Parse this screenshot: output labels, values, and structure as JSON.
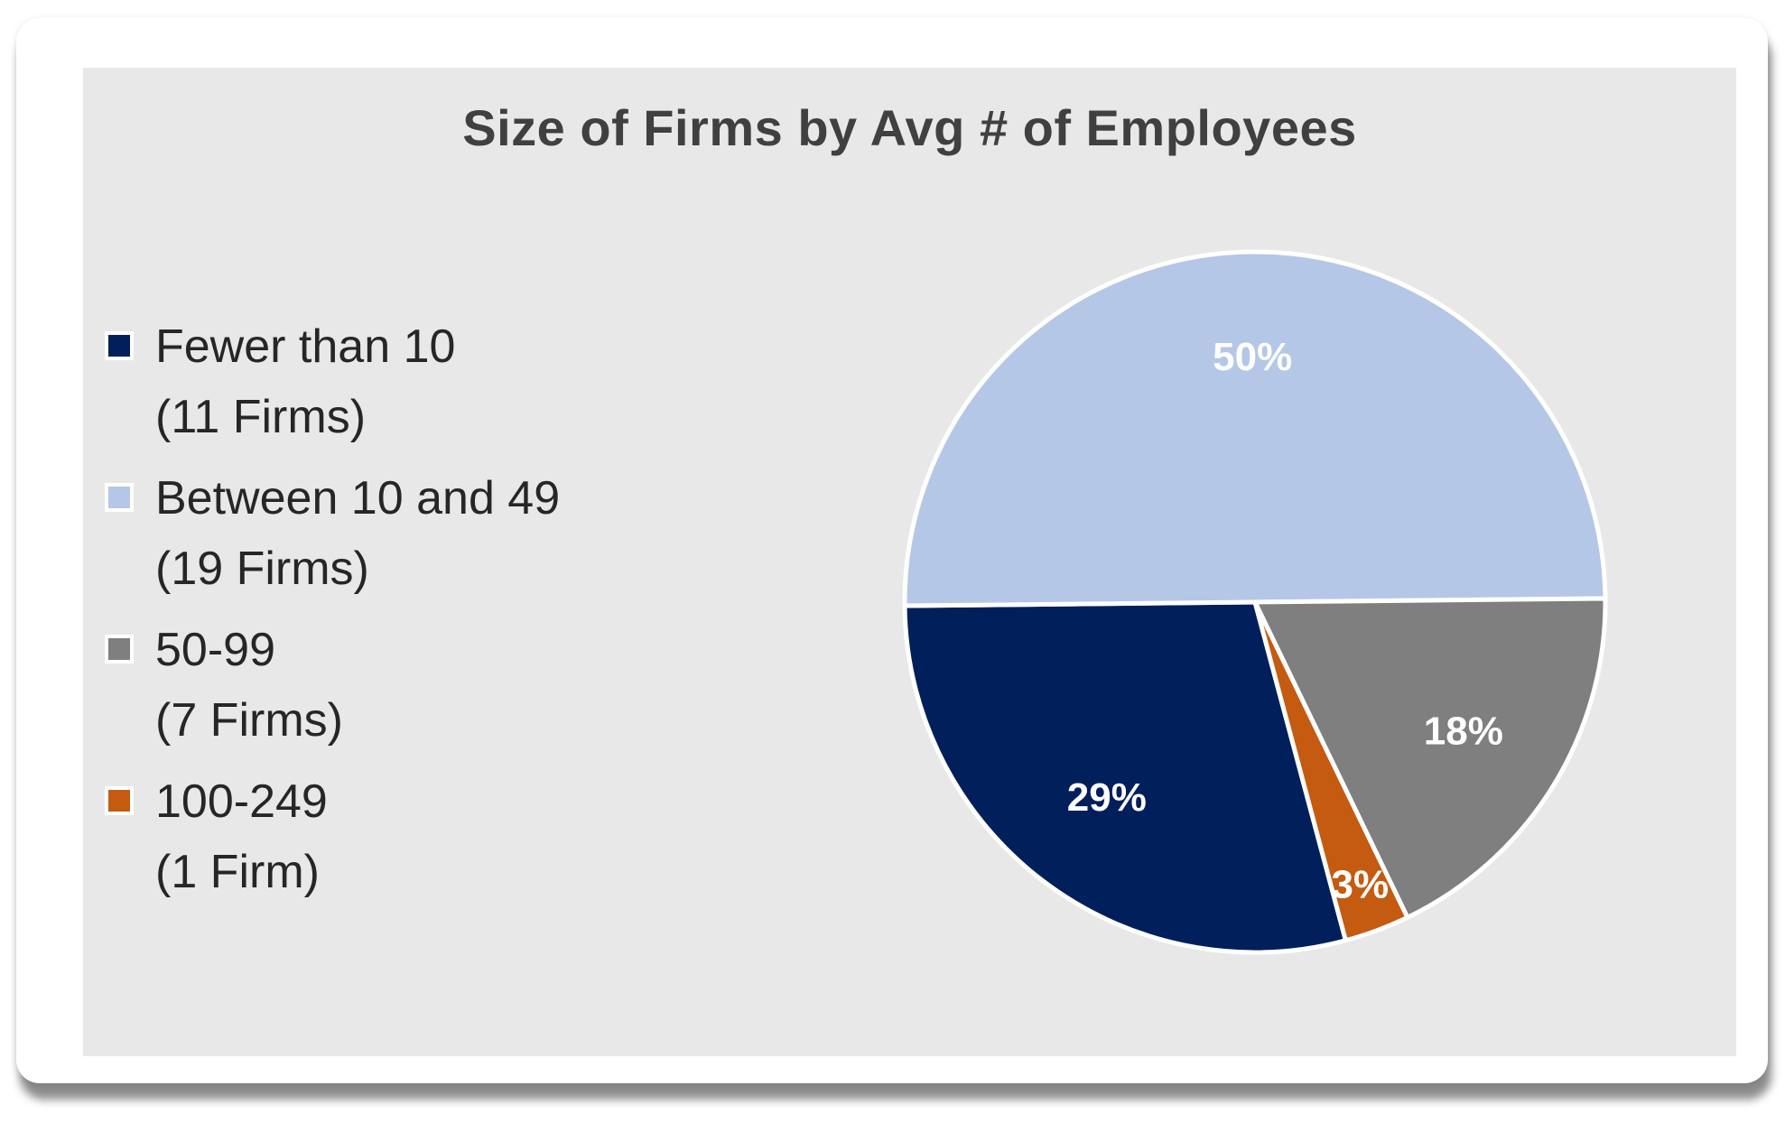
{
  "chart_data": {
    "type": "pie",
    "title": "Size of Firms by Avg # of Employees",
    "legend_position": "left",
    "slices": [
      {
        "label": "Fewer than 10",
        "detail": "(11 Firms)",
        "value": 29,
        "data_label": "29%",
        "color": "#001f5b"
      },
      {
        "label": "Between 10 and 49",
        "detail": "(19 Firms)",
        "value": 50,
        "data_label": "50%",
        "color": "#b4c7e7"
      },
      {
        "label": "50-99",
        "detail": "(7 Firms)",
        "value": 18,
        "data_label": "18%",
        "color": "#7f7f7f"
      },
      {
        "label": "100-249",
        "detail": "(1 Firm)",
        "value": 3,
        "data_label": "3%",
        "color": "#c55a11"
      }
    ]
  }
}
